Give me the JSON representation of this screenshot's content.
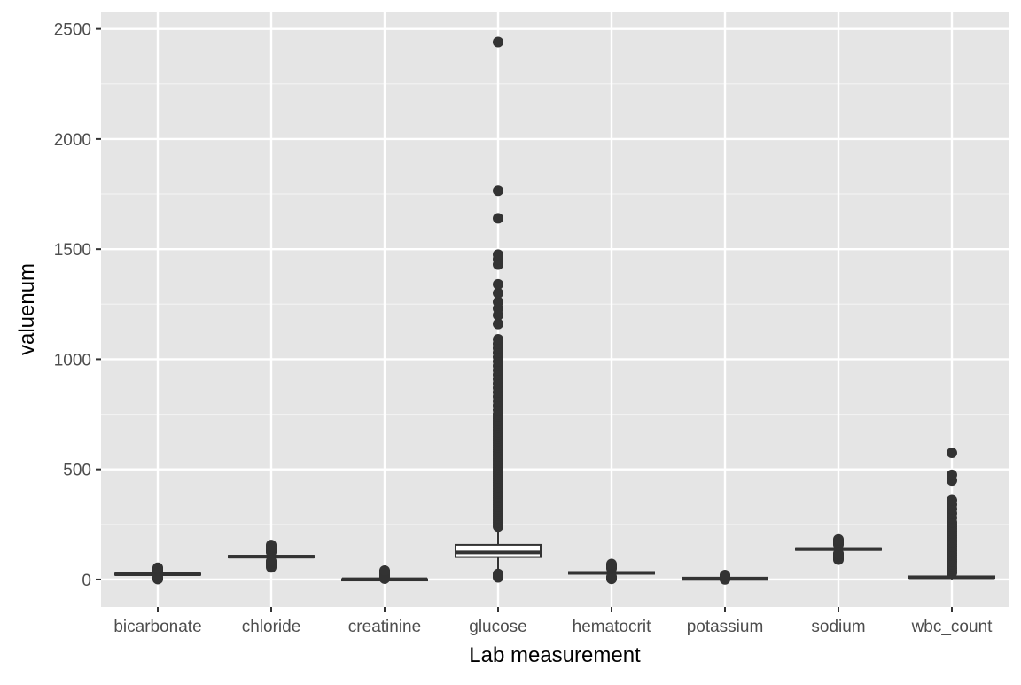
{
  "chart_data": {
    "type": "boxplot",
    "title": "",
    "xlabel": "Lab measurement",
    "ylabel": "valuenum",
    "ylim": [
      -125,
      2575
    ],
    "y_ticks": [
      0,
      500,
      1000,
      1500,
      2000,
      2500
    ],
    "grid": true,
    "legend": "none",
    "categories": [
      "bicarbonate",
      "chloride",
      "creatinine",
      "glucose",
      "hematocrit",
      "potassium",
      "sodium",
      "wbc_count"
    ],
    "boxes": [
      {
        "category": "bicarbonate",
        "q1": 21,
        "median": 24,
        "q3": 27,
        "whisker_low": 12,
        "whisker_high": 36,
        "outliers": [
          2,
          5,
          8,
          10,
          40,
          42,
          45,
          48,
          50,
          53
        ]
      },
      {
        "category": "chloride",
        "q1": 100,
        "median": 104,
        "q3": 108,
        "whisker_low": 88,
        "whisker_high": 120,
        "outliers": [
          55,
          62,
          68,
          72,
          76,
          80,
          84,
          124,
          128,
          133,
          138,
          143,
          150,
          156
        ]
      },
      {
        "category": "creatinine",
        "q1": 0.7,
        "median": 1,
        "q3": 1.6,
        "whisker_low": 0.1,
        "whisker_high": 3,
        "outliers": [
          4,
          6,
          9,
          12,
          16,
          20,
          24,
          28,
          32,
          36,
          40
        ]
      },
      {
        "category": "glucose",
        "q1": 102,
        "median": 123,
        "q3": 157,
        "whisker_low": 40,
        "whisker_high": 238,
        "outliers": [
          10,
          15,
          20,
          25,
          240,
          250,
          260,
          270,
          280,
          290,
          300,
          310,
          320,
          330,
          340,
          350,
          360,
          370,
          380,
          390,
          400,
          410,
          420,
          430,
          440,
          450,
          460,
          470,
          480,
          490,
          500,
          510,
          520,
          530,
          540,
          550,
          560,
          570,
          580,
          590,
          600,
          610,
          620,
          630,
          640,
          650,
          660,
          670,
          680,
          690,
          700,
          710,
          720,
          730,
          740,
          750,
          770,
          790,
          810,
          830,
          850,
          870,
          890,
          910,
          930,
          950,
          970,
          990,
          1010,
          1030,
          1050,
          1070,
          1090,
          1160,
          1200,
          1230,
          1260,
          1300,
          1340,
          1430,
          1455,
          1475,
          1640,
          1765,
          2440
        ]
      },
      {
        "category": "hematocrit",
        "q1": 26,
        "median": 30,
        "q3": 34,
        "whisker_low": 16,
        "whisker_high": 46,
        "outliers": [
          3,
          6,
          9,
          12,
          50,
          54,
          58,
          62,
          66,
          70
        ]
      },
      {
        "category": "potassium",
        "q1": 3.7,
        "median": 4.1,
        "q3": 4.6,
        "whisker_low": 2.5,
        "whisker_high": 6,
        "outliers": [
          0.5,
          1.5,
          7,
          9,
          11,
          13,
          15,
          17,
          20
        ]
      },
      {
        "category": "sodium",
        "q1": 134,
        "median": 138,
        "q3": 142,
        "whisker_low": 122,
        "whisker_high": 154,
        "outliers": [
          90,
          96,
          100,
          105,
          110,
          115,
          118,
          158,
          163,
          168,
          172,
          177,
          182
        ]
      },
      {
        "category": "wbc_count",
        "q1": 7,
        "median": 10,
        "q3": 14,
        "whisker_low": 0.1,
        "whisker_high": 25,
        "outliers": [
          30,
          40,
          50,
          60,
          70,
          80,
          90,
          100,
          110,
          120,
          130,
          140,
          150,
          160,
          170,
          180,
          190,
          200,
          210,
          220,
          230,
          240,
          250,
          260,
          280,
          300,
          320,
          340,
          360,
          450,
          475,
          575
        ]
      }
    ]
  }
}
